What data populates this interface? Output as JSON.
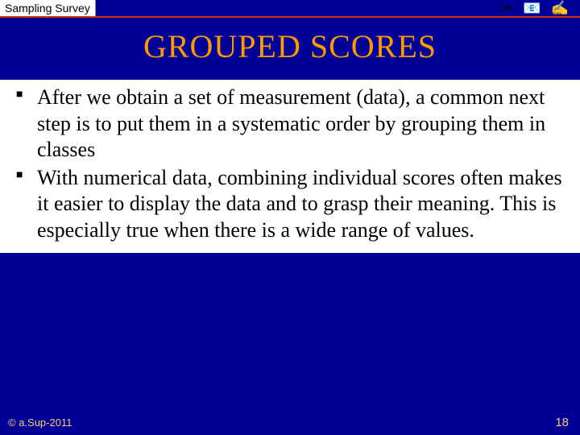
{
  "header": {
    "label": "Sampling Survey",
    "icons": [
      "✂",
      "📧",
      "✍"
    ]
  },
  "title": "GROUPED SCORES",
  "bullets": [
    "After we obtain a set of measurement (data), a common next step is to put them in a systematic order by grouping them in classes",
    "With numerical data, combining individual scores often makes it easier to display the data and to grasp their meaning. This is especially true when there is a wide range of values."
  ],
  "footer": {
    "copyright": "© a.Sup-2011",
    "page": "18"
  },
  "colors": {
    "background": "#000099",
    "accent_orange": "#ff9900",
    "footer_text": "#ffcc66",
    "rule": "#cc3300",
    "content_bg": "#ffffff"
  }
}
